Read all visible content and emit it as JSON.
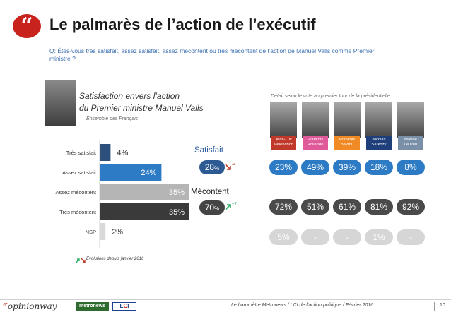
{
  "header": {
    "badge": "“",
    "title": "Le palmarès de l’action de l’exécutif",
    "question": "Q: Êtes-vous très satisfait, assez satisfait, assez mécontent ou très mécontent de l’action de Manuel Valls comme Premier ministre ?"
  },
  "left": {
    "subtitle_line1": "Satisfaction envers l’action",
    "subtitle_line2": "du Premier ministre Manuel Valls",
    "ensemble": "Ensemble des Français"
  },
  "chart_data": {
    "type": "bar",
    "orientation": "horizontal",
    "title": "Satisfaction envers l’action du Premier ministre Manuel Valls",
    "subtitle": "Ensemble des Français",
    "categories": [
      "Très satisfait",
      "Assez satisfait",
      "Assez mécontent",
      "Très mécontent",
      "NSP"
    ],
    "values": [
      4,
      24,
      35,
      35,
      2
    ],
    "value_labels": [
      "4%",
      "24%",
      "35%",
      "35%",
      "2%"
    ],
    "colors": [
      "#2d4f7c",
      "#2d7bc4",
      "#b5b5b5",
      "#3a3a3a",
      "#d9d9d9"
    ],
    "xlim": [
      0,
      35
    ]
  },
  "summary": {
    "satisfait_label": "Satisfait",
    "satisfait_value": "28",
    "satisfait_pct": "%",
    "satisfait_evo": "-4",
    "mecontent_label": "Mécontent",
    "mecontent_value": "70",
    "mecontent_pct": "%",
    "mecontent_evo": "+7"
  },
  "detail_title": "Détail selon le vote au premier tour de la présidentielle",
  "candidates": [
    {
      "name_line1": "Jean-Luc",
      "name_line2": "Mélenchon",
      "color": "#c0392b",
      "satisfait": "23%",
      "mecontent": "72%",
      "nsp": "5%"
    },
    {
      "name_line1": "François",
      "name_line2": "Hollande",
      "color": "#e05a9a",
      "satisfait": "49%",
      "mecontent": "51%",
      "nsp": "-"
    },
    {
      "name_line1": "François",
      "name_line2": "Bayrou",
      "color": "#f08a24",
      "satisfait": "39%",
      "mecontent": "61%",
      "nsp": "-"
    },
    {
      "name_line1": "Nicolas",
      "name_line2": "Sarkozy",
      "color": "#1e3f7a",
      "satisfait": "18%",
      "mecontent": "81%",
      "nsp": "1%"
    },
    {
      "name_line1": "Marine",
      "name_line2": "Le Pen",
      "color": "#7a8fa8",
      "satisfait": "8%",
      "mecontent": "92%",
      "nsp": "-"
    }
  ],
  "legend": {
    "evolutions": "Evolutions depuis janvier 2016"
  },
  "footer": {
    "brand_quote": "“",
    "brand": "opinionway",
    "metro": "metronews",
    "lci_l": "L",
    "lci_c": "C",
    "lci_i": "I",
    "barometre": "Le baromètre Metronews / LCI de l’action politique / Février 2016",
    "page": "10"
  }
}
